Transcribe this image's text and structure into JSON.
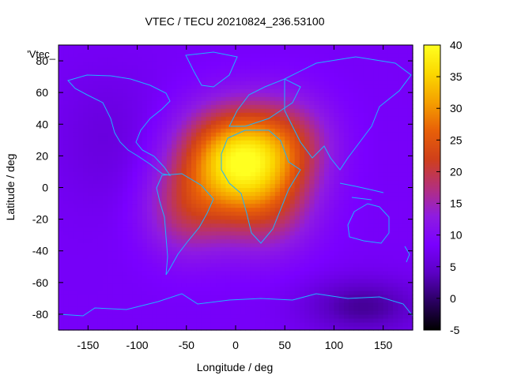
{
  "chart_data": {
    "type": "heatmap",
    "title": "VTEC / TECU 20210824_236.53100",
    "xlabel": "Longitude / deg",
    "ylabel": "Latitude / deg",
    "legend_label": "'Vtec_",
    "xlim": [
      -180,
      180
    ],
    "ylim": [
      -90,
      90
    ],
    "xticks": [
      -150,
      -100,
      -50,
      0,
      50,
      100,
      150
    ],
    "yticks": [
      -80,
      -60,
      -40,
      -20,
      0,
      20,
      40,
      60,
      80
    ],
    "colorbar": {
      "min": -5,
      "max": 40,
      "ticks": [
        -5,
        0,
        5,
        10,
        15,
        20,
        25,
        30,
        35,
        40
      ],
      "palette": [
        "#000000",
        "#2a0060",
        "#5b00c4",
        "#7a00ff",
        "#8f1ce0",
        "#b4307a",
        "#d0401a",
        "#e86008",
        "#f5a000",
        "#fbd800",
        "#ffff20"
      ]
    },
    "field": {
      "background_tecu": 8,
      "peaks": [
        {
          "lon": 5,
          "lat": 18,
          "tecu": 30,
          "lon_sigma": 40,
          "lat_sigma": 22
        },
        {
          "lon": -50,
          "lat": -15,
          "tecu": 9,
          "lon_sigma": 30,
          "lat_sigma": 20
        },
        {
          "lon": 30,
          "lat": -15,
          "tecu": 8,
          "lon_sigma": 35,
          "lat_sigma": 20
        },
        {
          "lon": 60,
          "lat": 30,
          "tecu": 6,
          "lon_sigma": 30,
          "lat_sigma": 20
        },
        {
          "lon": 130,
          "lat": -75,
          "tecu": -6,
          "lon_sigma": 40,
          "lat_sigma": 12
        },
        {
          "lon": -130,
          "lat": 30,
          "tecu": -2,
          "lon_sigma": 40,
          "lat_sigma": 30
        }
      ]
    }
  }
}
